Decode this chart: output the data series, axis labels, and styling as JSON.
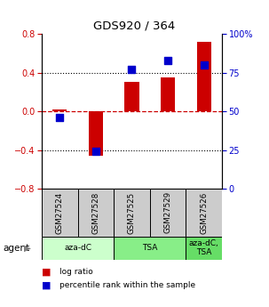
{
  "title": "GDS920 / 364",
  "samples": [
    "GSM27524",
    "GSM27528",
    "GSM27525",
    "GSM27529",
    "GSM27526"
  ],
  "log_ratios": [
    0.02,
    -0.46,
    0.3,
    0.35,
    0.72
  ],
  "percentile_ranks": [
    46,
    24,
    77,
    83,
    80
  ],
  "agent_groups": [
    {
      "label": "aza-dC",
      "samples": [
        "GSM27524",
        "GSM27528"
      ],
      "color": "#ccffcc"
    },
    {
      "label": "TSA",
      "samples": [
        "GSM27525",
        "GSM27529"
      ],
      "color": "#88ee88"
    },
    {
      "label": "aza-dC,\nTSA",
      "samples": [
        "GSM27526"
      ],
      "color": "#66dd66"
    }
  ],
  "bar_color": "#cc0000",
  "dot_color": "#0000cc",
  "left_ylim": [
    -0.8,
    0.8
  ],
  "right_ylim": [
    0,
    100
  ],
  "left_yticks": [
    -0.8,
    -0.4,
    0.0,
    0.4,
    0.8
  ],
  "right_yticks": [
    0,
    25,
    50,
    75,
    100
  ],
  "right_yticklabels": [
    "0",
    "25",
    "50",
    "75",
    "100%"
  ],
  "hlines": [
    -0.4,
    0.0,
    0.4
  ],
  "hline_styles": [
    "dotted",
    "dashed",
    "dotted"
  ],
  "legend_items": [
    {
      "color": "#cc0000",
      "label": "log ratio"
    },
    {
      "color": "#0000cc",
      "label": "percentile rank within the sample"
    }
  ],
  "agent_label": "agent",
  "background_color": "#ffffff",
  "sample_label_bg": "#cccccc"
}
